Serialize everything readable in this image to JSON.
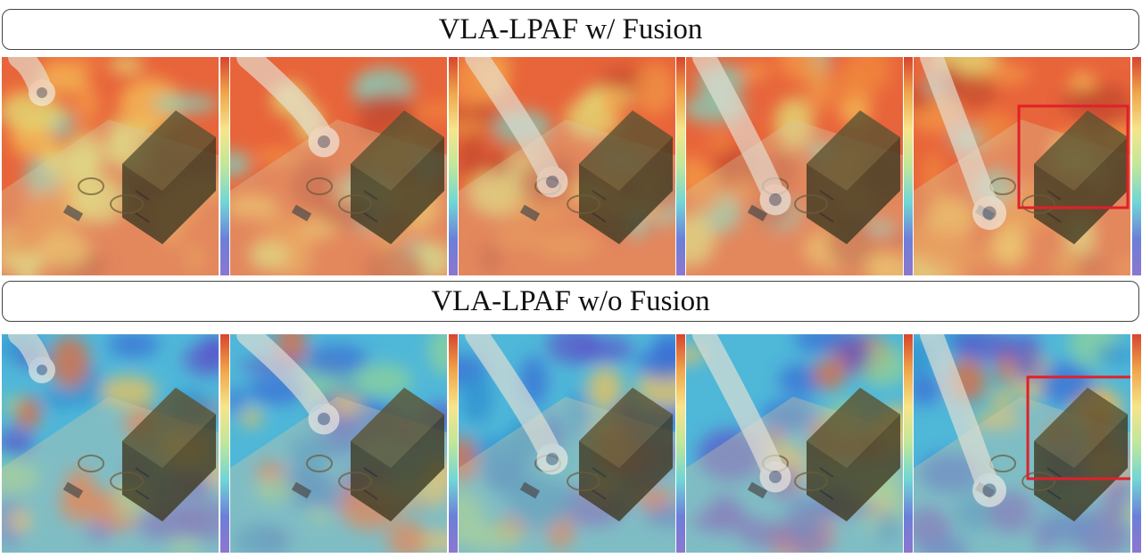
{
  "figure": {
    "rows": [
      {
        "title": "VLA-LPAF w/ Fusion",
        "palette": "warm",
        "highlight_panel": 5,
        "panels": [
          {
            "arm": "left-top"
          },
          {
            "arm": "center-top"
          },
          {
            "arm": "center-mid"
          },
          {
            "arm": "center-low"
          },
          {
            "arm": "left-low"
          }
        ]
      },
      {
        "title": "VLA-LPAF w/o Fusion",
        "palette": "cool",
        "highlight_panel": 5,
        "panels": [
          {
            "arm": "left-top"
          },
          {
            "arm": "center-top"
          },
          {
            "arm": "center-mid"
          },
          {
            "arm": "center-low"
          },
          {
            "arm": "left-low"
          }
        ]
      }
    ],
    "colors": {
      "highlight": "#e0202a",
      "warm_base": "#e8643a",
      "cool_base": "#4fb7d8",
      "cabinet": "#3f3a22"
    },
    "colorbar_stops": [
      "#d8452e",
      "#f0a64a",
      "#f6e58a",
      "#bfe79a",
      "#6fd6d6",
      "#6c7fd9",
      "#8b77cf"
    ]
  }
}
